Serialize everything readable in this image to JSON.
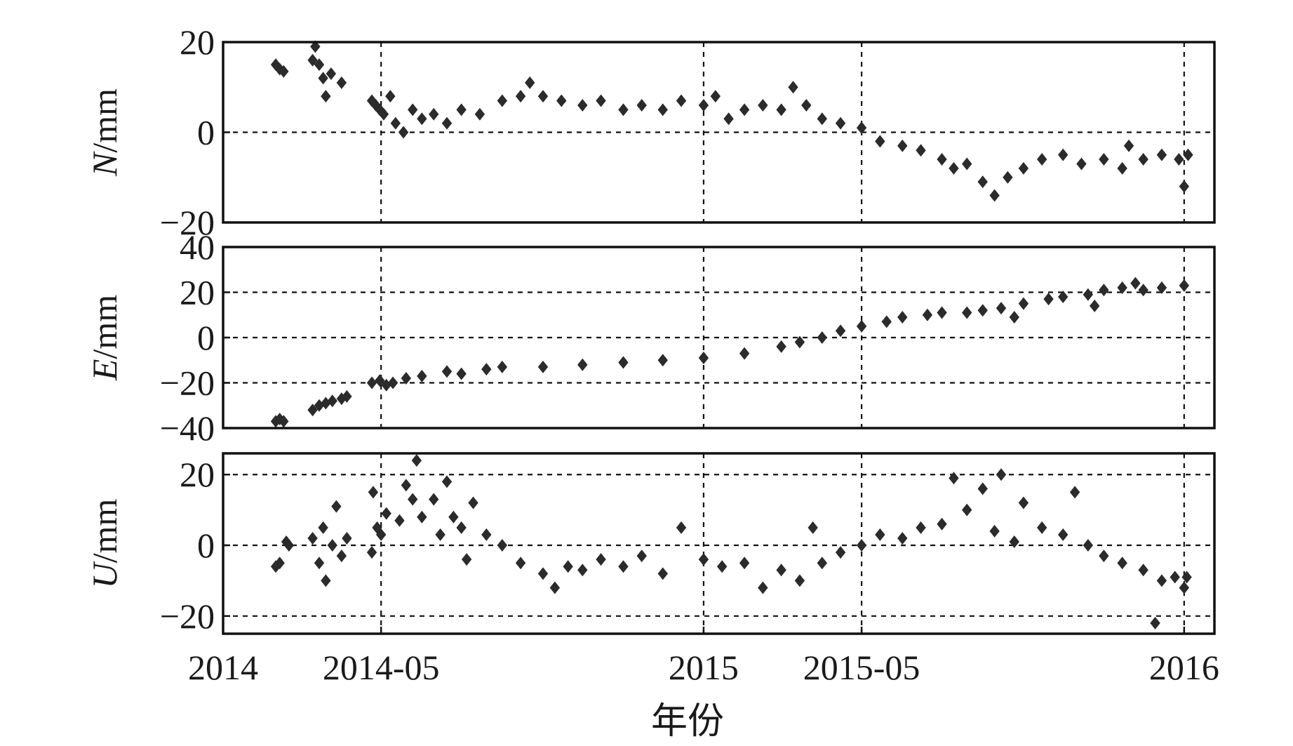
{
  "chart_data": {
    "type": "scatter",
    "xlabel": "年份",
    "x_ticks": [
      {
        "date": "2014-01-01",
        "label": "2014"
      },
      {
        "date": "2014-05-01",
        "label": "2014-05"
      },
      {
        "date": "2015-01-01",
        "label": "2015"
      },
      {
        "date": "2015-05-01",
        "label": "2015-05"
      },
      {
        "date": "2016-01-01",
        "label": "2016"
      }
    ],
    "x_range": [
      "2014-01-01",
      "2016-01-24"
    ],
    "grid": true,
    "marker": "diamond",
    "marker_color": "#2b2b2b",
    "panels": [
      {
        "name": "N",
        "ylabel_var": "N",
        "ylabel_unit": "/mm",
        "ylim": [
          -20,
          20
        ],
        "yticks": [
          20,
          0,
          -20
        ],
        "ytick_labels": [
          "20",
          "0",
          "−20"
        ],
        "grid_y": [
          0
        ],
        "points": [
          [
            "2014-02-10",
            15
          ],
          [
            "2014-02-13",
            14
          ],
          [
            "2014-02-16",
            13.5
          ],
          [
            "2014-03-10",
            16
          ],
          [
            "2014-03-12",
            19
          ],
          [
            "2014-03-15",
            15
          ],
          [
            "2014-03-18",
            12
          ],
          [
            "2014-03-20",
            8
          ],
          [
            "2014-03-24",
            13
          ],
          [
            "2014-04-01",
            11
          ],
          [
            "2014-04-24",
            7
          ],
          [
            "2014-04-27",
            6
          ],
          [
            "2014-04-30",
            5
          ],
          [
            "2014-05-03",
            4
          ],
          [
            "2014-05-08",
            8
          ],
          [
            "2014-05-12",
            2
          ],
          [
            "2014-05-18",
            0
          ],
          [
            "2014-05-25",
            5
          ],
          [
            "2014-06-01",
            3
          ],
          [
            "2014-06-10",
            4
          ],
          [
            "2014-06-20",
            2
          ],
          [
            "2014-07-01",
            5
          ],
          [
            "2014-07-15",
            4
          ],
          [
            "2014-08-01",
            7
          ],
          [
            "2014-08-15",
            8
          ],
          [
            "2014-08-22",
            11
          ],
          [
            "2014-09-01",
            8
          ],
          [
            "2014-09-15",
            7
          ],
          [
            "2014-10-01",
            6
          ],
          [
            "2014-10-15",
            7
          ],
          [
            "2014-11-01",
            5
          ],
          [
            "2014-11-15",
            6
          ],
          [
            "2014-12-01",
            5
          ],
          [
            "2014-12-15",
            7
          ],
          [
            "2015-01-01",
            6
          ],
          [
            "2015-01-10",
            8
          ],
          [
            "2015-01-20",
            3
          ],
          [
            "2015-02-01",
            5
          ],
          [
            "2015-02-15",
            6
          ],
          [
            "2015-03-01",
            5
          ],
          [
            "2015-03-10",
            10
          ],
          [
            "2015-03-20",
            6
          ],
          [
            "2015-04-01",
            3
          ],
          [
            "2015-04-15",
            2
          ],
          [
            "2015-05-01",
            1
          ],
          [
            "2015-05-15",
            -2
          ],
          [
            "2015-06-01",
            -3
          ],
          [
            "2015-06-15",
            -4
          ],
          [
            "2015-07-01",
            -6
          ],
          [
            "2015-07-10",
            -8
          ],
          [
            "2015-07-20",
            -7
          ],
          [
            "2015-08-01",
            -11
          ],
          [
            "2015-08-10",
            -14
          ],
          [
            "2015-08-20",
            -10
          ],
          [
            "2015-09-01",
            -8
          ],
          [
            "2015-09-15",
            -6
          ],
          [
            "2015-10-01",
            -5
          ],
          [
            "2015-10-15",
            -7
          ],
          [
            "2015-11-01",
            -6
          ],
          [
            "2015-11-15",
            -8
          ],
          [
            "2015-11-20",
            -3
          ],
          [
            "2015-12-01",
            -6
          ],
          [
            "2015-12-15",
            -5
          ],
          [
            "2015-12-28",
            -6
          ],
          [
            "2016-01-01",
            -12
          ],
          [
            "2016-01-04",
            -5
          ]
        ]
      },
      {
        "name": "E",
        "ylabel_var": "E",
        "ylabel_unit": "/mm",
        "ylim": [
          -40,
          40
        ],
        "yticks": [
          40,
          20,
          0,
          -20,
          -40
        ],
        "ytick_labels": [
          "40",
          "20",
          "0",
          "−20",
          "−40"
        ],
        "grid_y": [
          20,
          0,
          -20
        ],
        "points": [
          [
            "2014-02-10",
            -37
          ],
          [
            "2014-02-13",
            -36
          ],
          [
            "2014-02-16",
            -37
          ],
          [
            "2014-03-10",
            -32
          ],
          [
            "2014-03-15",
            -30
          ],
          [
            "2014-03-20",
            -29
          ],
          [
            "2014-03-25",
            -28
          ],
          [
            "2014-04-01",
            -27
          ],
          [
            "2014-04-05",
            -26
          ],
          [
            "2014-04-24",
            -20
          ],
          [
            "2014-04-30",
            -19
          ],
          [
            "2014-05-05",
            -21
          ],
          [
            "2014-05-10",
            -20
          ],
          [
            "2014-05-20",
            -18
          ],
          [
            "2014-06-01",
            -17
          ],
          [
            "2014-06-20",
            -15
          ],
          [
            "2014-07-01",
            -16
          ],
          [
            "2014-07-20",
            -14
          ],
          [
            "2014-08-01",
            -13
          ],
          [
            "2014-09-01",
            -13
          ],
          [
            "2014-10-01",
            -12
          ],
          [
            "2014-11-01",
            -11
          ],
          [
            "2014-12-01",
            -10
          ],
          [
            "2015-01-01",
            -9
          ],
          [
            "2015-02-01",
            -7
          ],
          [
            "2015-03-01",
            -4
          ],
          [
            "2015-03-15",
            -2
          ],
          [
            "2015-04-01",
            0
          ],
          [
            "2015-04-15",
            3
          ],
          [
            "2015-05-01",
            5
          ],
          [
            "2015-05-20",
            7
          ],
          [
            "2015-06-01",
            9
          ],
          [
            "2015-06-20",
            10
          ],
          [
            "2015-07-01",
            11
          ],
          [
            "2015-07-20",
            11
          ],
          [
            "2015-08-01",
            12
          ],
          [
            "2015-08-15",
            13
          ],
          [
            "2015-08-25",
            9
          ],
          [
            "2015-09-01",
            15
          ],
          [
            "2015-09-20",
            17
          ],
          [
            "2015-10-01",
            18
          ],
          [
            "2015-10-20",
            19
          ],
          [
            "2015-10-25",
            14
          ],
          [
            "2015-11-01",
            21
          ],
          [
            "2015-11-15",
            22
          ],
          [
            "2015-11-25",
            24
          ],
          [
            "2015-12-01",
            21
          ],
          [
            "2015-12-15",
            22
          ],
          [
            "2016-01-01",
            23
          ]
        ]
      },
      {
        "name": "U",
        "ylabel_var": "U",
        "ylabel_unit": "/mm",
        "ylim": [
          -25,
          26
        ],
        "yticks": [
          20,
          0,
          -20
        ],
        "ytick_labels": [
          "20",
          "0",
          "−20"
        ],
        "grid_y": [
          20,
          0,
          -20
        ],
        "points": [
          [
            "2014-02-10",
            -6
          ],
          [
            "2014-02-13",
            -5
          ],
          [
            "2014-02-18",
            1
          ],
          [
            "2014-02-20",
            0
          ],
          [
            "2014-03-10",
            2
          ],
          [
            "2014-03-15",
            -5
          ],
          [
            "2014-03-18",
            5
          ],
          [
            "2014-03-20",
            -10
          ],
          [
            "2014-03-25",
            0
          ],
          [
            "2014-03-28",
            11
          ],
          [
            "2014-04-01",
            -3
          ],
          [
            "2014-04-05",
            2
          ],
          [
            "2014-04-24",
            -2
          ],
          [
            "2014-04-25",
            15
          ],
          [
            "2014-04-28",
            5
          ],
          [
            "2014-05-01",
            3
          ],
          [
            "2014-05-05",
            9
          ],
          [
            "2014-05-15",
            7
          ],
          [
            "2014-05-20",
            17
          ],
          [
            "2014-05-25",
            13
          ],
          [
            "2014-05-28",
            24
          ],
          [
            "2014-06-01",
            8
          ],
          [
            "2014-06-10",
            13
          ],
          [
            "2014-06-15",
            3
          ],
          [
            "2014-06-20",
            18
          ],
          [
            "2014-06-25",
            8
          ],
          [
            "2014-07-01",
            5
          ],
          [
            "2014-07-05",
            -4
          ],
          [
            "2014-07-10",
            12
          ],
          [
            "2014-07-20",
            3
          ],
          [
            "2014-08-01",
            0
          ],
          [
            "2014-08-15",
            -5
          ],
          [
            "2014-09-01",
            -8
          ],
          [
            "2014-09-10",
            -12
          ],
          [
            "2014-09-20",
            -6
          ],
          [
            "2014-10-01",
            -7
          ],
          [
            "2014-10-15",
            -4
          ],
          [
            "2014-11-01",
            -6
          ],
          [
            "2014-11-15",
            -3
          ],
          [
            "2014-12-01",
            -8
          ],
          [
            "2014-12-15",
            5
          ],
          [
            "2015-01-01",
            -4
          ],
          [
            "2015-01-15",
            -6
          ],
          [
            "2015-02-01",
            -5
          ],
          [
            "2015-02-15",
            -12
          ],
          [
            "2015-03-01",
            -7
          ],
          [
            "2015-03-15",
            -10
          ],
          [
            "2015-03-25",
            5
          ],
          [
            "2015-04-01",
            -5
          ],
          [
            "2015-04-15",
            -2
          ],
          [
            "2015-05-01",
            0
          ],
          [
            "2015-05-15",
            3
          ],
          [
            "2015-06-01",
            2
          ],
          [
            "2015-06-15",
            5
          ],
          [
            "2015-07-01",
            6
          ],
          [
            "2015-07-10",
            19
          ],
          [
            "2015-07-20",
            10
          ],
          [
            "2015-08-01",
            16
          ],
          [
            "2015-08-10",
            4
          ],
          [
            "2015-08-15",
            20
          ],
          [
            "2015-08-25",
            1
          ],
          [
            "2015-09-01",
            12
          ],
          [
            "2015-09-15",
            5
          ],
          [
            "2015-10-01",
            3
          ],
          [
            "2015-10-10",
            15
          ],
          [
            "2015-10-20",
            0
          ],
          [
            "2015-11-01",
            -3
          ],
          [
            "2015-11-15",
            -5
          ],
          [
            "2015-12-01",
            -7
          ],
          [
            "2015-12-10",
            -22
          ],
          [
            "2015-12-15",
            -10
          ],
          [
            "2015-12-25",
            -9
          ],
          [
            "2016-01-01",
            -12
          ],
          [
            "2016-01-03",
            -9
          ]
        ]
      }
    ]
  }
}
